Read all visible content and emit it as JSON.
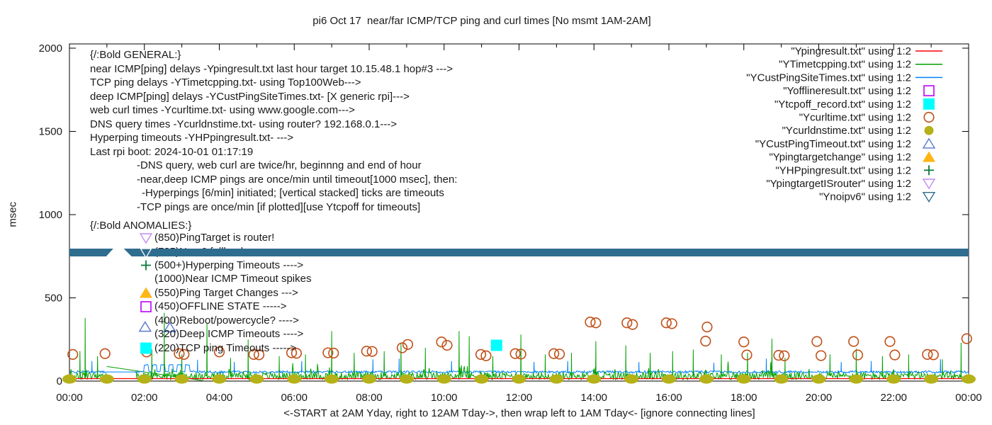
{
  "title": "pi6 Oct 17  near/far ICMP/TCP ping and curl times [No msmt 1AM-2AM]",
  "ylabel": "msec",
  "xlabel": "<-START at 2AM Yday, right to 12AM Tday->, then wrap left to 1AM Tday<- [ignore connecting lines]",
  "axes": {
    "y_ticks": [
      0,
      500,
      1000,
      1500,
      2000
    ],
    "x_tick_hours": [
      0,
      2,
      4,
      6,
      8,
      10,
      12,
      14,
      16,
      18,
      20,
      22,
      24
    ],
    "x_tick_labels": [
      "00:00",
      "02:00",
      "04:00",
      "06:00",
      "08:00",
      "10:00",
      "12:00",
      "14:00",
      "16:00",
      "18:00",
      "20:00",
      "22:00",
      "00:00"
    ]
  },
  "legend": [
    {
      "text": "\"Ypingresult.txt\" using 1:2",
      "marker": "line",
      "color": "#ff0000"
    },
    {
      "text": "\"YTimetcpping.txt\" using 1:2",
      "marker": "line",
      "color": "#00a000"
    },
    {
      "text": "\"YCustPingSiteTimes.txt\" using 1:2",
      "marker": "line",
      "color": "#0080ff"
    },
    {
      "text": "\"Yofflineresult.txt\" using 1:2",
      "marker": "square-open",
      "color": "#bf00ff"
    },
    {
      "text": "\"Ytcpoff_record.txt\" using 1:2",
      "marker": "square-filled",
      "color": "#00ffff"
    },
    {
      "text": "\"Ycurltime.txt\" using 1:2",
      "marker": "circle-open",
      "color": "#c05018"
    },
    {
      "text": "\"Ycurldnstime.txt\" using 1:2",
      "marker": "circle-filled",
      "color": "#b5b118"
    },
    {
      "text": "\"YCustPingTimeout.txt\" using 1:2",
      "marker": "triup-open",
      "color": "#5577d0"
    },
    {
      "text": "\"Ypingtargetchange\" using 1:2",
      "marker": "triup-filled",
      "color": "#ffb515"
    },
    {
      "text": "\"YHPpingresult.txt\" using 1:2",
      "marker": "plus",
      "color": "#0a7a3c"
    },
    {
      "text": "\"YpingtargetISrouter\" using 1:2",
      "marker": "tridown-open",
      "color": "#c38cf0"
    },
    {
      "text": "\"Ynoipv6\" using 1:2",
      "marker": "tridown-open",
      "color": "#2f6d8e"
    }
  ],
  "general": {
    "header": "{/:Bold GENERAL:}",
    "lines": [
      {
        "text": "near ICMP[ping] delays -Ypingresult.txt last hour target 10.15.48.1 hop#3 --->",
        "indent": 0
      },
      {
        "text": "TCP ping delays -YTimetcpping.txt- using Top100Web--->",
        "indent": 0
      },
      {
        "text": "deep ICMP[ping] delays -YCustPingSiteTimes.txt- [X generic rpi]--->",
        "indent": 0
      },
      {
        "text": "web curl times -Ycurltime.txt- using www.google.com--->",
        "indent": 0
      },
      {
        "text": "DNS query times -Ycurldnstime.txt- using router? 192.168.0.1--->",
        "indent": 0
      },
      {
        "text": "Hyperping timeouts -YHPpingresult.txt- --->",
        "indent": 0
      },
      {
        "text": "Last rpi boot: 2024-10-01 01:17:19",
        "indent": 0
      },
      {
        "text": "-DNS query, web curl are twice/hr, beginnng and end of hour",
        "indent": 66
      },
      {
        "text": "-near,deep ICMP pings are once/min until timeout[1000 msec], then:",
        "indent": 66
      },
      {
        "text": "-Hyperpings [6/min] initiated; [vertical stacked] ticks are timeouts",
        "indent": 73
      },
      {
        "text": "-TCP pings are once/min [if plotted][use Ytcpoff for timeouts]",
        "indent": 66
      }
    ]
  },
  "anomalies": {
    "header": "{/:Bold ANOMALIES:}",
    "items": [
      {
        "text": "(850)PingTarget is router!",
        "marker": "tridown-open",
        "color": "#c38cf0",
        "occluded": false
      },
      {
        "text": "(785)No v6 fallback",
        "marker": "tridown-open",
        "color": "#ffffff",
        "occluded": true
      },
      {
        "text": "(500+)Hyperping Timeouts ---->",
        "marker": "plus",
        "color": "#0a7a3c",
        "occluded": false
      },
      {
        "text": "(1000)Near ICMP Timeout spikes",
        "marker": "none",
        "color": "",
        "occluded": false
      },
      {
        "text": "(550)Ping Target Changes --->",
        "marker": "triup-filled",
        "color": "#ffb515",
        "occluded": false
      },
      {
        "text": "(450)OFFLINE STATE ----->",
        "marker": "square-open",
        "color": "#bf00ff",
        "occluded": false
      },
      {
        "text": "(400)Reboot/powercycle? ---->",
        "marker": "none",
        "color": "",
        "occluded": false
      },
      {
        "text": "(320)Deep ICMP Timeouts ---->",
        "marker": "none",
        "color": "",
        "occluded": false
      },
      {
        "text": "(220)TCP ping Timeouts ----->",
        "marker": "square-filled",
        "color": "#00ffff",
        "occluded": false
      }
    ]
  },
  "chart_data": {
    "type": "line",
    "title": "pi6 Oct 17  near/far ICMP/TCP ping and curl times [No msmt 1AM-2AM]",
    "xlabel": "<-START at 2AM Yday, right to 12AM Tday->, then wrap left to 1AM Tday<- [ignore connecting lines]",
    "ylabel": "msec",
    "ylim": [
      0,
      2030
    ],
    "xlim_hours": [
      0,
      24
    ],
    "grid": false,
    "legend_position": "top-right",
    "no_measurement_gap_hours": [
      1.0,
      1.78
    ],
    "series": [
      {
        "name": "Ypingresult.txt",
        "type": "line",
        "color": "#ff0000",
        "baseline_msec": 15,
        "noise_msec": 0,
        "spikes": []
      },
      {
        "name": "YTimetcpping.txt",
        "type": "line",
        "color": "#00a000",
        "baseline_msec": 30,
        "noise_msec": 45,
        "spikes": [
          [
            0.28,
            180
          ],
          [
            0.42,
            380
          ],
          [
            0.75,
            150
          ],
          [
            2.2,
            190
          ],
          [
            2.53,
            410
          ],
          [
            3.0,
            160
          ],
          [
            3.67,
            350
          ],
          [
            4.3,
            140
          ],
          [
            4.77,
            250
          ],
          [
            5.6,
            150
          ],
          [
            6.3,
            160
          ],
          [
            7.0,
            300
          ],
          [
            7.6,
            170
          ],
          [
            8.4,
            180
          ],
          [
            8.85,
            230
          ],
          [
            9.5,
            200
          ],
          [
            10.4,
            300
          ],
          [
            10.67,
            270
          ],
          [
            11.3,
            150
          ],
          [
            12.05,
            280
          ],
          [
            12.7,
            160
          ],
          [
            13.4,
            170
          ],
          [
            14.05,
            240
          ],
          [
            14.85,
            215
          ],
          [
            15.5,
            170
          ],
          [
            16.1,
            180
          ],
          [
            16.65,
            190
          ],
          [
            17.4,
            160
          ],
          [
            18.1,
            170
          ],
          [
            18.75,
            255
          ],
          [
            19.1,
            140
          ],
          [
            20.3,
            160
          ],
          [
            21.0,
            195
          ],
          [
            21.7,
            150
          ],
          [
            22.4,
            160
          ],
          [
            23.3,
            130
          ],
          [
            23.8,
            230
          ]
        ]
      },
      {
        "name": "YCustPingSiteTimes.txt",
        "type": "line",
        "color": "#0080ff",
        "baseline_msec": 55,
        "noise_msec": 14,
        "pulse": {
          "start": 2.0,
          "end": 3.3,
          "low": 55,
          "high": 95,
          "period": 0.22
        },
        "spikes": [
          [
            0.6,
            120
          ],
          [
            3.42,
            128
          ],
          [
            4.4,
            115
          ],
          [
            6.2,
            120
          ],
          [
            8.1,
            130
          ],
          [
            8.8,
            135
          ],
          [
            10.2,
            120
          ],
          [
            12.4,
            115
          ],
          [
            13.3,
            120
          ],
          [
            15.2,
            115
          ],
          [
            17.2,
            110
          ],
          [
            18.6,
            135
          ],
          [
            20.6,
            115
          ],
          [
            21.4,
            120
          ],
          [
            23.25,
            132
          ]
        ]
      },
      {
        "name": "Yofflineresult.txt",
        "type": "scatter",
        "marker": "square-open",
        "color": "#bf00ff",
        "points": []
      },
      {
        "name": "Ytcpoff_record.txt",
        "type": "scatter",
        "marker": "square-filled",
        "color": "#00ffff",
        "points": [
          [
            11.4,
            215
          ]
        ]
      },
      {
        "name": "Ycurltime.txt",
        "type": "scatter",
        "marker": "circle-open",
        "color": "#c05018",
        "points": [
          [
            0.09,
            160
          ],
          [
            0.95,
            165
          ],
          [
            2.06,
            175
          ],
          [
            2.93,
            165
          ],
          [
            3.06,
            160
          ],
          [
            4.0,
            175
          ],
          [
            4.92,
            160
          ],
          [
            5.06,
            158
          ],
          [
            5.93,
            170
          ],
          [
            6.06,
            167
          ],
          [
            6.9,
            170
          ],
          [
            7.05,
            168
          ],
          [
            7.93,
            180
          ],
          [
            8.08,
            178
          ],
          [
            8.88,
            200
          ],
          [
            9.03,
            220
          ],
          [
            9.93,
            235
          ],
          [
            10.08,
            215
          ],
          [
            10.98,
            160
          ],
          [
            11.12,
            152
          ],
          [
            11.9,
            165
          ],
          [
            12.05,
            162
          ],
          [
            12.93,
            165
          ],
          [
            13.08,
            162
          ],
          [
            13.9,
            355
          ],
          [
            14.05,
            350
          ],
          [
            14.88,
            350
          ],
          [
            15.03,
            340
          ],
          [
            15.93,
            350
          ],
          [
            16.08,
            345
          ],
          [
            16.98,
            240
          ],
          [
            17.02,
            325
          ],
          [
            18.0,
            235
          ],
          [
            18.08,
            157
          ],
          [
            18.93,
            155
          ],
          [
            19.08,
            152
          ],
          [
            19.95,
            238
          ],
          [
            20.06,
            153
          ],
          [
            20.93,
            238
          ],
          [
            21.04,
            157
          ],
          [
            21.9,
            238
          ],
          [
            22.03,
            157
          ],
          [
            22.9,
            160
          ],
          [
            23.06,
            158
          ],
          [
            23.95,
            255
          ]
        ]
      },
      {
        "name": "Ycurldnstime.txt",
        "type": "scatter",
        "marker": "ellipse-filled",
        "color": "#b5b118",
        "points": [
          [
            0,
            12
          ],
          [
            1,
            12
          ],
          [
            2,
            12
          ],
          [
            3,
            12
          ],
          [
            4,
            12
          ],
          [
            5,
            12
          ],
          [
            6,
            12
          ],
          [
            7,
            12
          ],
          [
            8,
            12
          ],
          [
            9,
            12
          ],
          [
            10,
            12
          ],
          [
            11,
            12
          ],
          [
            12,
            12
          ],
          [
            13,
            12
          ],
          [
            14,
            12
          ],
          [
            15,
            12
          ],
          [
            16,
            12
          ],
          [
            17,
            12
          ],
          [
            18,
            12
          ],
          [
            19,
            12
          ],
          [
            20,
            12
          ],
          [
            21,
            12
          ],
          [
            22,
            12
          ],
          [
            23,
            12
          ],
          [
            24,
            12
          ]
        ]
      },
      {
        "name": "YCustPingTimeout.txt",
        "type": "scatter",
        "marker": "triup-open",
        "color": "#5577d0",
        "points": [
          [
            2.02,
            325
          ],
          [
            2.68,
            322
          ]
        ]
      },
      {
        "name": "Ypingtargetchange",
        "type": "scatter",
        "marker": "triup-filled",
        "color": "#ffb515",
        "points": []
      },
      {
        "name": "YHPpingresult.txt",
        "type": "scatter",
        "marker": "plus",
        "color": "#0a7a3c",
        "points": []
      },
      {
        "name": "YpingtargetISrouter",
        "type": "scatter",
        "marker": "tridown-open",
        "color": "#c38cf0",
        "points": []
      },
      {
        "name": "Ynoipv6",
        "type": "band",
        "marker": "tridown-open",
        "color": "#2f6d8e",
        "band_msec": [
          750,
          795
        ],
        "segments_hours": [
          [
            0,
            1.17
          ],
          [
            1.45,
            24
          ]
        ]
      }
    ],
    "connector_line": {
      "color": "#00a000",
      "from": [
        1.0,
        88
      ],
      "to": [
        3.58,
        2
      ]
    }
  }
}
